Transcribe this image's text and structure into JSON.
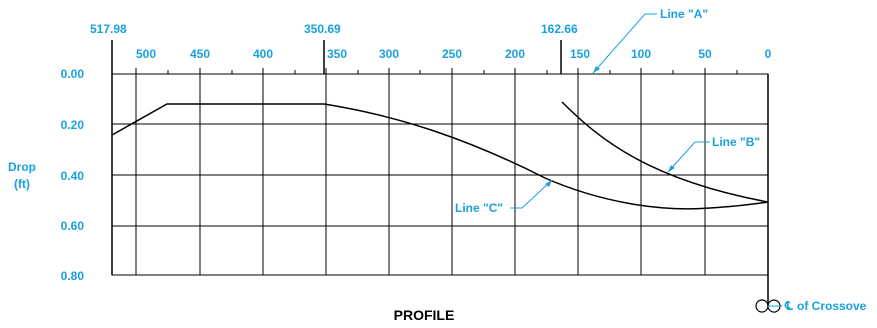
{
  "colors": {
    "label": "#1aa0e0",
    "line": "#000000"
  },
  "axes": {
    "y_title_line1": "Drop",
    "y_title_line2": "(ft)",
    "y_ticks": [
      "0.00",
      "0.20",
      "0.40",
      "0.60",
      "0.80"
    ],
    "x_ticks": [
      "500",
      "450",
      "400",
      "350",
      "300",
      "250",
      "200",
      "150",
      "100",
      "50",
      "0"
    ],
    "marked_stations": [
      "517.98",
      "350.69",
      "162.66"
    ]
  },
  "lines": {
    "line_a": "Line \"A\"",
    "line_b": "Line \"B\"",
    "line_c": "Line \"C\""
  },
  "centerline": {
    "symbol": "℄",
    "label": "of Crossove"
  },
  "caption": "PROFILE"
}
